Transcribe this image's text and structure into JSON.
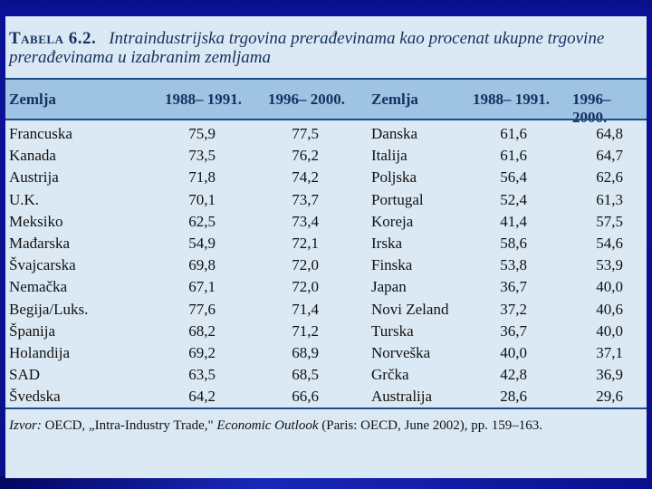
{
  "title": {
    "label": "Tabela 6.2.",
    "text": "Intraindustrijska trgovina prerađevinama kao procenat ukupne trgovine prerađevinama u izabranim zemljama"
  },
  "columns": {
    "country": "Zemlja",
    "period1": "1988– 1991.",
    "period2": "1996– 2000."
  },
  "left_rows": [
    {
      "country": "Francuska",
      "v1": "75,9",
      "v2": "77,5"
    },
    {
      "country": "Kanada",
      "v1": "73,5",
      "v2": "76,2"
    },
    {
      "country": "Austrija",
      "v1": "71,8",
      "v2": "74,2"
    },
    {
      "country": "U.K.",
      "v1": "70,1",
      "v2": "73,7"
    },
    {
      "country": "Meksiko",
      "v1": "62,5",
      "v2": "73,4"
    },
    {
      "country": "Mađarska",
      "v1": "54,9",
      "v2": "72,1"
    },
    {
      "country": "Švajcarska",
      "v1": "69,8",
      "v2": "72,0"
    },
    {
      "country": "Nemačka",
      "v1": "67,1",
      "v2": "72,0"
    },
    {
      "country": "Begija/Luks.",
      "v1": "77,6",
      "v2": "71,4"
    },
    {
      "country": "Španija",
      "v1": "68,2",
      "v2": "71,2"
    },
    {
      "country": "Holandija",
      "v1": "69,2",
      "v2": "68,9"
    },
    {
      "country": "SAD",
      "v1": "63,5",
      "v2": "68,5"
    },
    {
      "country": "Švedska",
      "v1": "64,2",
      "v2": "66,6"
    }
  ],
  "right_rows": [
    {
      "country": "Danska",
      "v1": "61,6",
      "v2": "64,8"
    },
    {
      "country": "Italija",
      "v1": "61,6",
      "v2": "64,7"
    },
    {
      "country": "Poljska",
      "v1": "56,4",
      "v2": "62,6"
    },
    {
      "country": "Portugal",
      "v1": "52,4",
      "v2": "61,3"
    },
    {
      "country": "Koreja",
      "v1": "41,4",
      "v2": "57,5"
    },
    {
      "country": "Irska",
      "v1": "58,6",
      "v2": "54,6"
    },
    {
      "country": "Finska",
      "v1": "53,8",
      "v2": "53,9"
    },
    {
      "country": "Japan",
      "v1": "36,7",
      "v2": "40,0"
    },
    {
      "country": "Novi Zeland",
      "v1": "37,2",
      "v2": "40,6"
    },
    {
      "country": "Turska",
      "v1": "36,7",
      "v2": "40,0"
    },
    {
      "country": "Norveška",
      "v1": "40,0",
      "v2": "37,1"
    },
    {
      "country": "Grčka",
      "v1": "42,8",
      "v2": "36,9"
    },
    {
      "country": "Australija",
      "v1": "28,6",
      "v2": "29,6"
    }
  ],
  "source": {
    "label": "Izvor:",
    "text1": " OECD, „Intra-Industry Trade,\" ",
    "journal": "Economic Outlook",
    "text2": " (Paris: OECD, June 2002), pp. 159–163."
  }
}
